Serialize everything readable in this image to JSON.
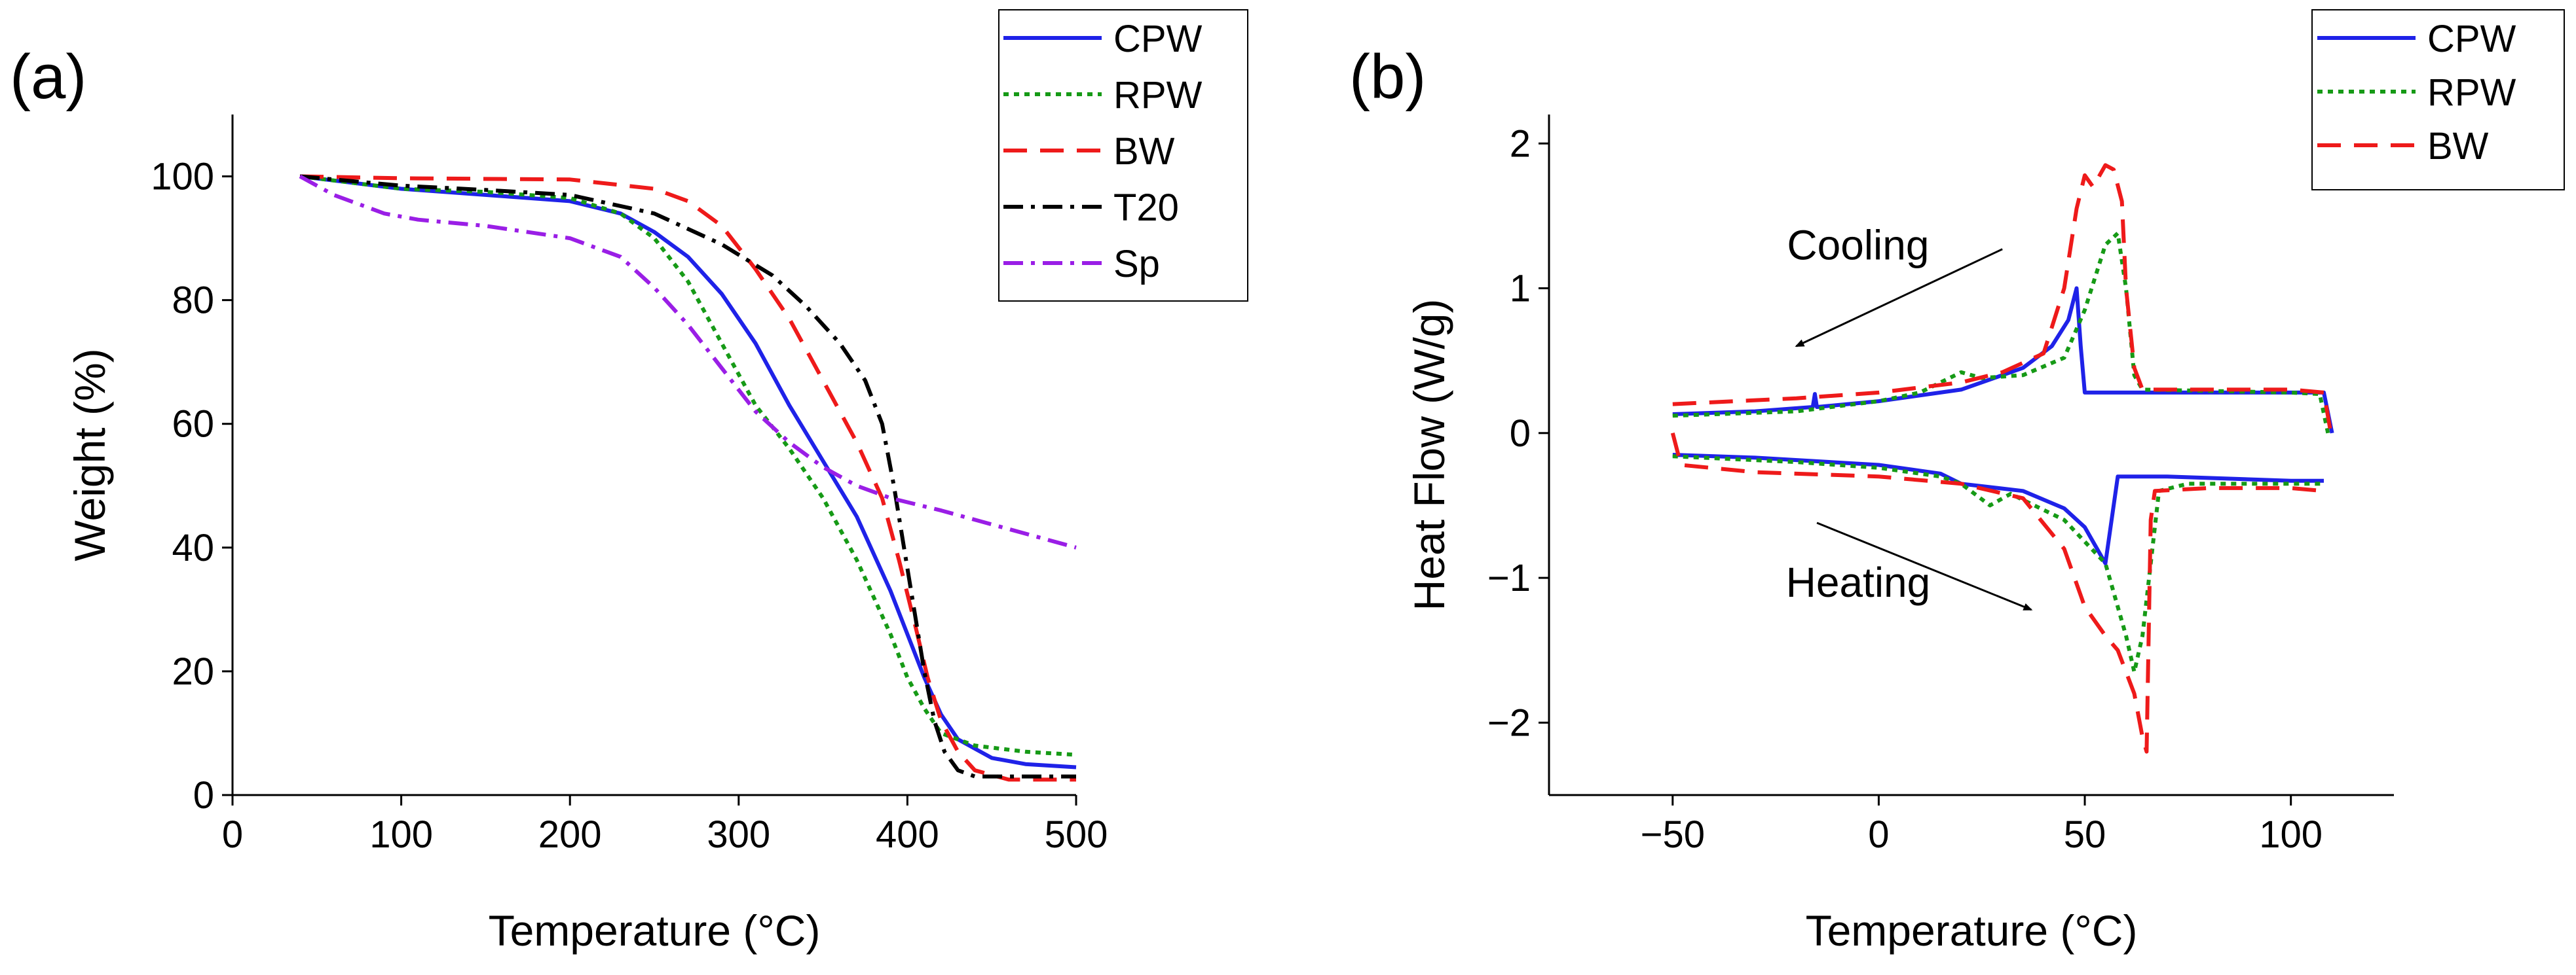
{
  "colors": {
    "CPW": "#1f22e8",
    "RPW": "#169a16",
    "BW": "#ee1a1a",
    "T20": "#000000",
    "Sp": "#9a1ee6"
  },
  "dashes": {
    "CPW": "",
    "RPW": "8 8",
    "BW": "36 20",
    "T20": "30 12 6 12",
    "Sp": "30 12 6 12"
  },
  "chart_data": [
    {
      "type": "line",
      "panel_label": "(a)",
      "xlabel": "Temperature (°C)",
      "ylabel": "Weight (%)",
      "xlim": [
        0,
        500
      ],
      "ylim": [
        0,
        110
      ],
      "xticks": [
        "0",
        "100",
        "200",
        "300",
        "400",
        "500"
      ],
      "yticks": [
        "0",
        "20",
        "40",
        "60",
        "80",
        "100"
      ],
      "legend": [
        "CPW",
        "RPW",
        "BW",
        "T20",
        "Sp"
      ],
      "series": [
        {
          "name": "CPW",
          "points": [
            [
              40,
              100
            ],
            [
              100,
              98
            ],
            [
              150,
              97
            ],
            [
              200,
              96
            ],
            [
              230,
              94
            ],
            [
              250,
              91
            ],
            [
              270,
              87
            ],
            [
              290,
              81
            ],
            [
              310,
              73
            ],
            [
              330,
              63
            ],
            [
              350,
              54
            ],
            [
              370,
              45
            ],
            [
              390,
              33
            ],
            [
              400,
              26
            ],
            [
              410,
              19
            ],
            [
              420,
              13
            ],
            [
              430,
              9
            ],
            [
              450,
              6
            ],
            [
              470,
              5
            ],
            [
              500,
              4.5
            ]
          ]
        },
        {
          "name": "RPW",
          "points": [
            [
              40,
              100
            ],
            [
              100,
              98
            ],
            [
              150,
              97.5
            ],
            [
              200,
              96.5
            ],
            [
              230,
              94
            ],
            [
              250,
              90
            ],
            [
              270,
              83
            ],
            [
              290,
              73
            ],
            [
              310,
              63
            ],
            [
              330,
              56
            ],
            [
              350,
              48
            ],
            [
              370,
              38
            ],
            [
              390,
              26
            ],
            [
              400,
              19
            ],
            [
              410,
              14
            ],
            [
              420,
              10
            ],
            [
              440,
              8
            ],
            [
              470,
              7
            ],
            [
              500,
              6.5
            ]
          ]
        },
        {
          "name": "BW",
          "points": [
            [
              40,
              100
            ],
            [
              100,
              99.7
            ],
            [
              200,
              99.5
            ],
            [
              250,
              98
            ],
            [
              270,
              96
            ],
            [
              290,
              92
            ],
            [
              310,
              85
            ],
            [
              330,
              77
            ],
            [
              350,
              67
            ],
            [
              370,
              57
            ],
            [
              385,
              48
            ],
            [
              395,
              38
            ],
            [
              405,
              27
            ],
            [
              412,
              19
            ],
            [
              420,
              12
            ],
            [
              430,
              7
            ],
            [
              440,
              4
            ],
            [
              460,
              2.5
            ],
            [
              500,
              2.5
            ]
          ]
        },
        {
          "name": "T20",
          "points": [
            [
              40,
              100
            ],
            [
              100,
              98.5
            ],
            [
              150,
              97.8
            ],
            [
              200,
              97
            ],
            [
              250,
              94
            ],
            [
              290,
              89
            ],
            [
              320,
              84
            ],
            [
              340,
              79
            ],
            [
              360,
              73
            ],
            [
              375,
              67
            ],
            [
              385,
              60
            ],
            [
              392,
              50
            ],
            [
              398,
              40
            ],
            [
              404,
              30
            ],
            [
              410,
              20
            ],
            [
              416,
              12
            ],
            [
              422,
              7
            ],
            [
              430,
              4
            ],
            [
              440,
              3
            ],
            [
              500,
              3
            ]
          ]
        },
        {
          "name": "Sp",
          "points": [
            [
              40,
              100
            ],
            [
              60,
              97
            ],
            [
              90,
              94
            ],
            [
              110,
              93
            ],
            [
              150,
              92
            ],
            [
              200,
              90
            ],
            [
              230,
              87
            ],
            [
              250,
              82
            ],
            [
              270,
              76
            ],
            [
              290,
              69
            ],
            [
              310,
              62
            ],
            [
              330,
              57
            ],
            [
              350,
              53
            ],
            [
              370,
              50
            ],
            [
              390,
              48
            ],
            [
              420,
              46
            ],
            [
              460,
              43
            ],
            [
              500,
              40
            ]
          ]
        }
      ]
    },
    {
      "type": "line",
      "panel_label": "(b)",
      "xlabel": "Temperature (°C)",
      "ylabel": "Heat Flow (W/g)",
      "xlim": [
        -80,
        125
      ],
      "ylim": [
        -2.5,
        2.2
      ],
      "xticks": [
        "−50",
        "0",
        "50",
        "100"
      ],
      "yticks": [
        "−2",
        "−1",
        "0",
        "1",
        "2"
      ],
      "legend": [
        "CPW",
        "RPW",
        "BW"
      ],
      "annotations": [
        {
          "text": "Cooling",
          "x": -5,
          "y": 1.2
        },
        {
          "text": "Heating",
          "x": -5,
          "y": -1.13
        }
      ],
      "arrows": [
        {
          "name": "cooling",
          "from": [
            30,
            1.27
          ],
          "to": [
            -20,
            0.6
          ]
        },
        {
          "name": "heating",
          "from": [
            -15,
            -0.62
          ],
          "to": [
            37,
            -1.22
          ]
        }
      ],
      "series": [
        {
          "name": "CPW",
          "segments": [
            [
              [
                -50,
                0.13
              ],
              [
                -30,
                0.15
              ],
              [
                -16,
                0.18
              ],
              [
                -15.5,
                0.27
              ],
              [
                -15,
                0.18
              ],
              [
                0,
                0.22
              ],
              [
                20,
                0.3
              ],
              [
                35,
                0.45
              ],
              [
                42,
                0.6
              ],
              [
                46,
                0.78
              ],
              [
                48,
                1.0
              ],
              [
                49,
                0.6
              ],
              [
                50,
                0.28
              ],
              [
                60,
                0.28
              ],
              [
                80,
                0.28
              ],
              [
                100,
                0.28
              ],
              [
                108,
                0.28
              ],
              [
                110,
                0.0
              ]
            ],
            [
              [
                -50,
                -0.15
              ],
              [
                -30,
                -0.17
              ],
              [
                0,
                -0.22
              ],
              [
                15,
                -0.28
              ],
              [
                20,
                -0.35
              ],
              [
                35,
                -0.4
              ],
              [
                45,
                -0.52
              ],
              [
                50,
                -0.65
              ],
              [
                55,
                -0.9
              ],
              [
                58,
                -0.3
              ],
              [
                70,
                -0.3
              ],
              [
                100,
                -0.33
              ],
              [
                108,
                -0.33
              ]
            ]
          ]
        },
        {
          "name": "RPW",
          "segments": [
            [
              [
                -50,
                0.12
              ],
              [
                -20,
                0.15
              ],
              [
                0,
                0.22
              ],
              [
                10,
                0.28
              ],
              [
                20,
                0.42
              ],
              [
                25,
                0.38
              ],
              [
                35,
                0.4
              ],
              [
                45,
                0.52
              ],
              [
                50,
                0.85
              ],
              [
                55,
                1.3
              ],
              [
                58,
                1.38
              ],
              [
                60,
                1.0
              ],
              [
                62,
                0.4
              ],
              [
                64,
                0.3
              ],
              [
                100,
                0.28
              ],
              [
                107,
                0.27
              ],
              [
                109,
                0.0
              ]
            ],
            [
              [
                -50,
                -0.16
              ],
              [
                -20,
                -0.2
              ],
              [
                0,
                -0.24
              ],
              [
                15,
                -0.3
              ],
              [
                20,
                -0.35
              ],
              [
                27,
                -0.5
              ],
              [
                32,
                -0.42
              ],
              [
                45,
                -0.6
              ],
              [
                55,
                -0.9
              ],
              [
                60,
                -1.4
              ],
              [
                62,
                -1.65
              ],
              [
                64,
                -1.4
              ],
              [
                66,
                -0.9
              ],
              [
                68,
                -0.4
              ],
              [
                75,
                -0.35
              ],
              [
                100,
                -0.35
              ],
              [
                108,
                -0.35
              ]
            ]
          ]
        },
        {
          "name": "BW",
          "segments": [
            [
              [
                -50,
                0.2
              ],
              [
                -20,
                0.24
              ],
              [
                0,
                0.28
              ],
              [
                20,
                0.35
              ],
              [
                30,
                0.42
              ],
              [
                40,
                0.55
              ],
              [
                45,
                1.0
              ],
              [
                48,
                1.55
              ],
              [
                50,
                1.78
              ],
              [
                52,
                1.7
              ],
              [
                55,
                1.85
              ],
              [
                57,
                1.82
              ],
              [
                59,
                1.6
              ],
              [
                60,
                1.0
              ],
              [
                62,
                0.45
              ],
              [
                64,
                0.3
              ],
              [
                80,
                0.3
              ],
              [
                100,
                0.3
              ],
              [
                108,
                0.28
              ],
              [
                110,
                -0.05
              ]
            ],
            [
              [
                -50,
                0.0
              ],
              [
                -48,
                -0.22
              ],
              [
                -30,
                -0.27
              ],
              [
                0,
                -0.3
              ],
              [
                20,
                -0.35
              ],
              [
                35,
                -0.45
              ],
              [
                45,
                -0.8
              ],
              [
                50,
                -1.2
              ],
              [
                55,
                -1.4
              ],
              [
                58,
                -1.5
              ],
              [
                62,
                -1.8
              ],
              [
                64,
                -2.1
              ],
              [
                65,
                -2.2
              ],
              [
                66,
                -0.6
              ],
              [
                67,
                -0.4
              ],
              [
                80,
                -0.38
              ],
              [
                100,
                -0.38
              ],
              [
                108,
                -0.4
              ]
            ]
          ]
        }
      ]
    }
  ]
}
